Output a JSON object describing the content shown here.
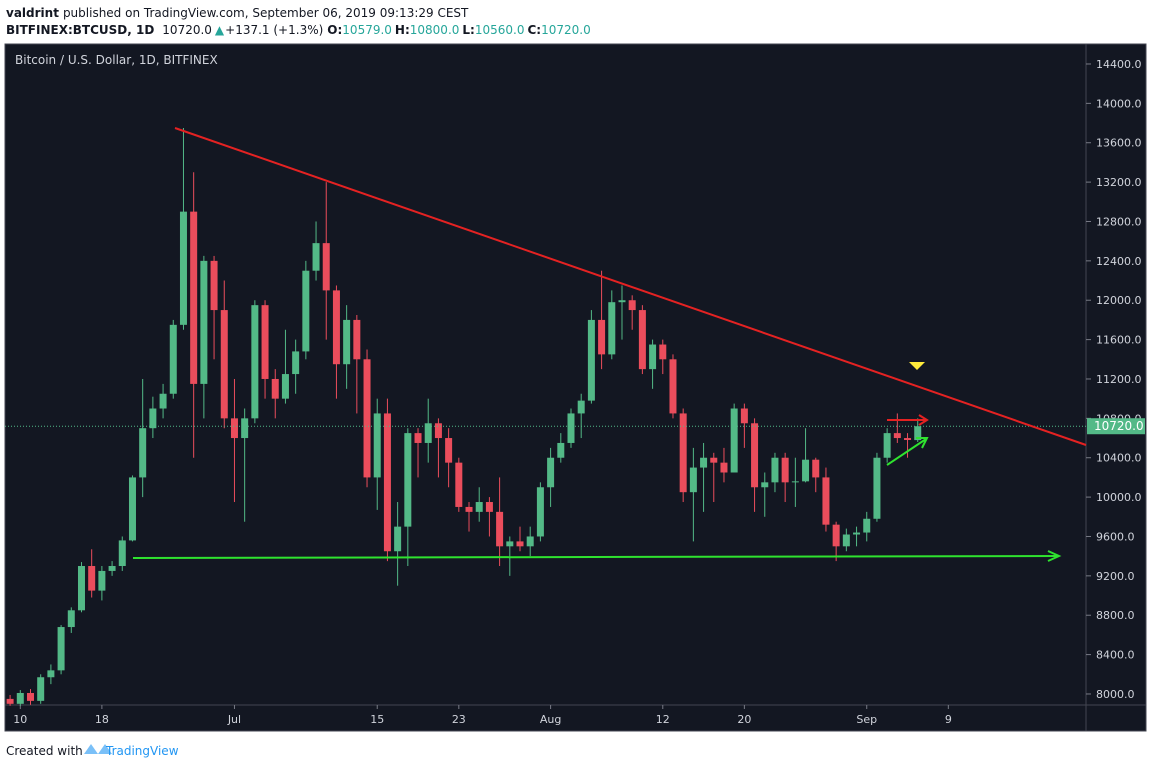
{
  "header": {
    "author": "valdrint",
    "published": "published on TradingView.com, September 06, 2019 09:13:29 CEST",
    "symbol": "BITFINEX:BTCUSD, 1D",
    "price": "10720.0",
    "arrow": "▲",
    "change": "+137.1 (+1.3%)",
    "open_label": "O:",
    "open": "10579.0",
    "high_label": "H:",
    "high": "10800.0",
    "low_label": "L:",
    "low": "10560.0",
    "close_label": "C:",
    "close": "10720.0"
  },
  "footer": {
    "created_with": "Created with",
    "brand": "TradingView"
  },
  "chart_data": {
    "type": "candlestick",
    "title": "Bitcoin / U.S. Dollar, 1D, BITFINEX",
    "categories": [
      null,
      "10",
      null,
      null,
      null,
      null,
      null,
      null,
      null,
      "18",
      null,
      null,
      null,
      null,
      null,
      null,
      null,
      null,
      null,
      null,
      null,
      null,
      "Jul",
      null,
      null,
      null,
      null,
      null,
      null,
      null,
      null,
      null,
      null,
      null,
      null,
      null,
      "15",
      null,
      null,
      null,
      null,
      null,
      null,
      null,
      "23",
      null,
      null,
      null,
      null,
      null,
      null,
      null,
      null,
      "Aug",
      null,
      null,
      null,
      null,
      null,
      null,
      null,
      null,
      null,
      null,
      "12",
      null,
      null,
      null,
      null,
      null,
      null,
      null,
      "20",
      null,
      null,
      null,
      null,
      null,
      null,
      null,
      null,
      null,
      null,
      null,
      "Sep",
      null,
      null,
      null,
      null,
      null,
      null,
      null,
      "9",
      null,
      null,
      null,
      null,
      null,
      null,
      null,
      null,
      null,
      null,
      null,
      null,
      null
    ],
    "open": [
      7950,
      7900,
      8010,
      7930,
      8170,
      8240,
      8680,
      8850,
      9300,
      9050,
      9250,
      9300,
      9560,
      10200,
      10700,
      10900,
      11050,
      11750,
      12900,
      11150,
      12400,
      11900,
      10800,
      10600,
      10800,
      11950,
      11200,
      11000,
      11250,
      11480,
      12300,
      12580,
      12100,
      11350,
      11800,
      11400,
      10200,
      10850,
      9450,
      9700,
      10650,
      10550,
      10750,
      10600,
      10350,
      9900,
      9850,
      9950,
      9850,
      9500,
      9550,
      9500,
      9600,
      10100,
      10400,
      10550,
      10850,
      10980,
      11800,
      11450,
      11980,
      12000,
      11900,
      11300,
      11550,
      11400,
      10850,
      10050,
      10300,
      10400,
      10350,
      10250,
      10900,
      10750,
      10100,
      10150,
      10400,
      10150,
      10160,
      10380,
      10200,
      9720,
      9500,
      9620,
      9640,
      9780,
      10400,
      10650,
      10600,
      10579,
      null,
      null,
      null,
      null,
      null,
      null,
      null,
      null,
      null,
      null,
      null,
      null,
      null,
      null,
      null,
      null
    ],
    "high": [
      7990,
      8040,
      8050,
      8200,
      8300,
      8700,
      8880,
      9340,
      9470,
      9300,
      9350,
      9600,
      10220,
      11200,
      11020,
      11150,
      11800,
      13750,
      13300,
      12450,
      12450,
      12200,
      11200,
      10900,
      12000,
      12000,
      11300,
      11700,
      11600,
      12400,
      12800,
      13200,
      12150,
      11950,
      11850,
      11500,
      11000,
      11000,
      9950,
      10700,
      10700,
      11000,
      10800,
      10700,
      10400,
      9950,
      10100,
      10000,
      10200,
      9600,
      9700,
      9700,
      10150,
      10500,
      10650,
      10900,
      11050,
      11900,
      12300,
      12100,
      12150,
      12050,
      11950,
      11600,
      11600,
      11450,
      10900,
      10500,
      10550,
      10450,
      10500,
      10950,
      10950,
      10800,
      10250,
      10450,
      10450,
      10400,
      10700,
      10400,
      10300,
      9750,
      9680,
      9700,
      9850,
      10450,
      10700,
      10850,
      10650,
      10800,
      null,
      null,
      null,
      null,
      null,
      null,
      null,
      null,
      null,
      null,
      null,
      null,
      null,
      null,
      null,
      null
    ],
    "low": [
      7880,
      7880,
      7890,
      7900,
      8100,
      8200,
      8620,
      8830,
      8980,
      8950,
      9200,
      9250,
      9550,
      10000,
      10600,
      10800,
      11000,
      11700,
      10400,
      10800,
      11400,
      10700,
      9950,
      9750,
      10750,
      11000,
      10800,
      10950,
      11050,
      11400,
      12200,
      11600,
      11000,
      11100,
      10850,
      10100,
      9870,
      9350,
      9100,
      9300,
      10200,
      10350,
      10200,
      10100,
      9850,
      9650,
      9750,
      9600,
      9300,
      9200,
      9450,
      9400,
      9550,
      9900,
      10350,
      10500,
      10600,
      10950,
      11300,
      11400,
      11600,
      11700,
      11250,
      11100,
      11250,
      10800,
      9950,
      9550,
      9850,
      9950,
      10150,
      10250,
      10500,
      9850,
      9800,
      10050,
      9950,
      9900,
      10150,
      10050,
      9650,
      9350,
      9450,
      9500,
      9550,
      9750,
      10350,
      10550,
      10400,
      10560,
      null,
      null,
      null,
      null,
      null,
      null,
      null,
      null,
      null,
      null,
      null,
      null,
      null,
      null,
      null,
      null
    ],
    "close": [
      7900,
      8010,
      7930,
      8170,
      8240,
      8680,
      8850,
      9300,
      9050,
      9250,
      9300,
      9560,
      10200,
      10700,
      10900,
      11050,
      11750,
      12900,
      11150,
      12400,
      11900,
      10800,
      10600,
      10800,
      11950,
      11200,
      11000,
      11250,
      11480,
      12300,
      12580,
      12100,
      11350,
      11800,
      11400,
      10200,
      10850,
      9450,
      9700,
      10650,
      10550,
      10750,
      10600,
      10350,
      9900,
      9850,
      9950,
      9850,
      9500,
      9550,
      9500,
      9600,
      10100,
      10400,
      10550,
      10850,
      10980,
      11800,
      11450,
      11980,
      12000,
      11900,
      11300,
      11550,
      11400,
      10850,
      10050,
      10300,
      10400,
      10350,
      10250,
      10900,
      10750,
      10100,
      10150,
      10400,
      10150,
      10160,
      10380,
      10200,
      9720,
      9500,
      9620,
      9640,
      9780,
      10400,
      10650,
      10600,
      10580,
      10720,
      null,
      null,
      null,
      null,
      null,
      null,
      null,
      null,
      null,
      null,
      null,
      null,
      null,
      null,
      null,
      null
    ],
    "up_color": "#53b987",
    "down_color": "#eb4d5c",
    "background": "#131722",
    "ylim": [
      7888,
      14603
    ],
    "yticks": [
      {
        "value": 8000,
        "label": "8000.0"
      },
      {
        "value": 8400,
        "label": "8400.0"
      },
      {
        "value": 8800,
        "label": "8800.0"
      },
      {
        "value": 9200,
        "label": "9200.0"
      },
      {
        "value": 9600,
        "label": "9600.0"
      },
      {
        "value": 10000,
        "label": "10000.0"
      },
      {
        "value": 10400,
        "label": "10400.0"
      },
      {
        "value": 10800,
        "label": "10800.0"
      },
      {
        "value": 11200,
        "label": "11200.0"
      },
      {
        "value": 11600,
        "label": "11600.0"
      },
      {
        "value": 12000,
        "label": "12000.0"
      },
      {
        "value": 12400,
        "label": "12400.0"
      },
      {
        "value": 12800,
        "label": "12800.0"
      },
      {
        "value": 13200,
        "label": "13200.0"
      },
      {
        "value": 13600,
        "label": "13600.0"
      },
      {
        "value": 14000,
        "label": "14000.0"
      },
      {
        "value": 14400,
        "label": "14400.0"
      }
    ],
    "last_price": {
      "value": 10720,
      "label": "10720.0"
    },
    "grid": false
  }
}
